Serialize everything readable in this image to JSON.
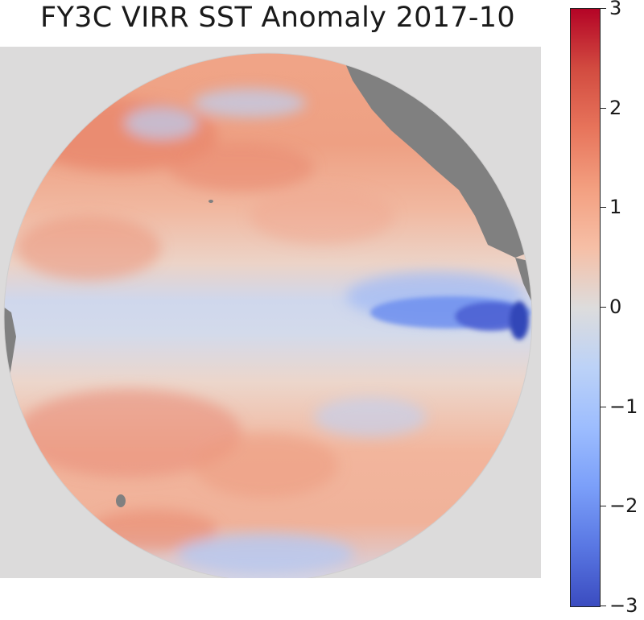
{
  "title": "FY3C VIRR SST Anomaly 2017-10",
  "colorbar": {
    "labels": [
      "3",
      "2",
      "1",
      "0",
      "−1",
      "−2",
      "−3"
    ],
    "min": -3,
    "max": 3,
    "colormap": "coolwarm"
  },
  "colors": {
    "ocean_neutral": "#dddcdc",
    "land": "#808080",
    "background": "#dcdbdb",
    "warm": "#e7745b",
    "cold": "#3b4cc0"
  }
}
